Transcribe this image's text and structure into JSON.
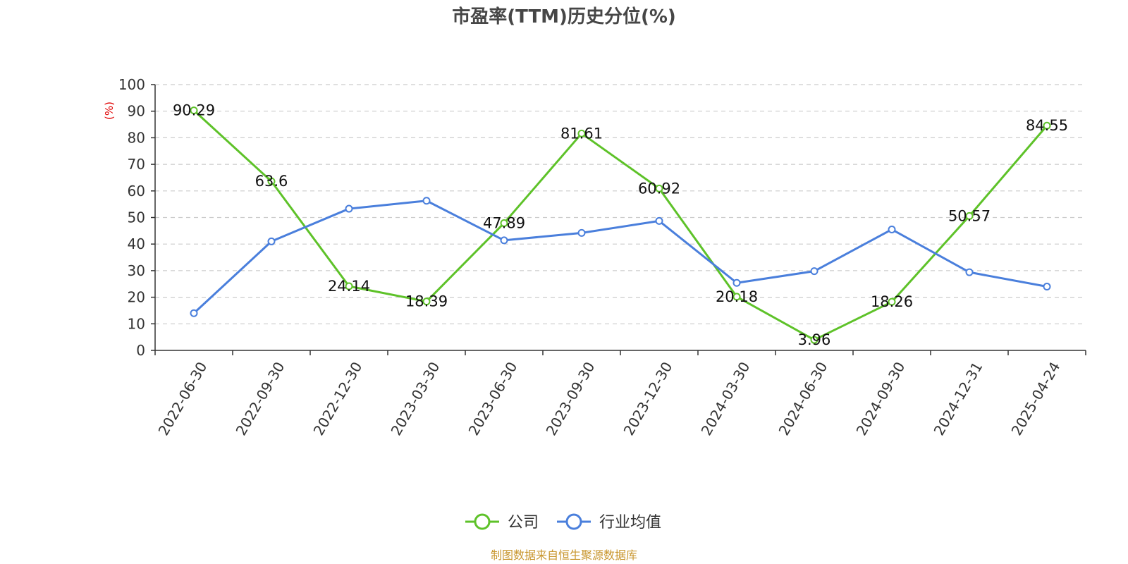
{
  "chart_data": {
    "type": "line",
    "title": "市盈率(TTM)历史分位(%)",
    "ylabel": "(%)",
    "ylim": [
      0,
      100
    ],
    "yticks": [
      "0",
      "10",
      "20",
      "30",
      "40",
      "50",
      "60",
      "70",
      "80",
      "90",
      "100"
    ],
    "categories": [
      "2022-06-30",
      "2022-09-30",
      "2022-12-30",
      "2023-03-30",
      "2023-06-30",
      "2023-09-30",
      "2023-12-30",
      "2024-03-30",
      "2024-06-30",
      "2024-09-30",
      "2024-12-31",
      "2025-04-24"
    ],
    "grid": true,
    "legend_position": "bottom",
    "series": [
      {
        "name": "公司",
        "color": "#5ec229",
        "values": [
          90.29,
          63.6,
          24.14,
          18.39,
          47.89,
          81.61,
          60.92,
          20.18,
          3.96,
          18.26,
          50.57,
          84.55
        ],
        "labels": [
          "90.29",
          "63.6",
          "24.14",
          "18.39",
          "47.89",
          "81.61",
          "60.92",
          "20.18",
          "3.96",
          "18.26",
          "50.57",
          "84.55"
        ]
      },
      {
        "name": "行业均值",
        "color": "#4a7fdc",
        "values": [
          14.0,
          41.0,
          53.3,
          56.3,
          41.4,
          44.2,
          48.7,
          25.4,
          29.8,
          45.5,
          29.4,
          24.0
        ]
      }
    ]
  },
  "footer": {
    "source": "制图数据来自恒生聚源数据库"
  }
}
